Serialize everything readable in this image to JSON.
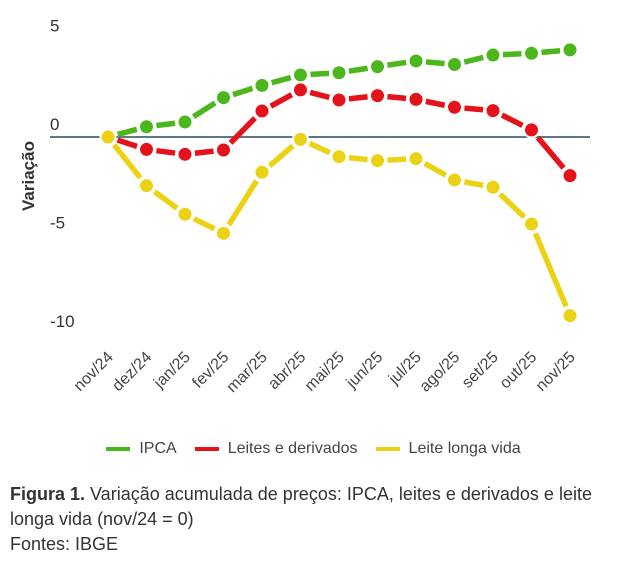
{
  "chart_data": {
    "type": "line",
    "title": "",
    "xlabel": "",
    "ylabel": "Variação",
    "ylim": [
      -10,
      5
    ],
    "yticks": [
      5,
      0,
      -5,
      -10
    ],
    "grid": false,
    "baseline": 0,
    "legend_position": "bottom",
    "categories": [
      "nov/24",
      "dez/24",
      "jan/25",
      "fev/25",
      "mar/25",
      "abr/25",
      "mai/25",
      "jun/25",
      "jul/25",
      "ago/25",
      "set/25",
      "out/25",
      "nov/25"
    ],
    "series": [
      {
        "name": "IPCA",
        "color": "#4cb71c",
        "values": [
          0,
          0.52,
          0.76,
          2.0,
          2.62,
          3.15,
          3.26,
          3.57,
          3.86,
          3.68,
          4.16,
          4.25,
          4.42
        ]
      },
      {
        "name": "Leites e derivados",
        "color": "#e3121b",
        "values": [
          0,
          -0.63,
          -0.88,
          -0.66,
          1.32,
          2.39,
          1.88,
          2.1,
          1.91,
          1.51,
          1.34,
          0.36,
          -1.96
        ]
      },
      {
        "name": "Leite longa vida",
        "color": "#ecd214",
        "values": [
          0,
          -2.47,
          -3.92,
          -4.89,
          -1.79,
          -0.12,
          -1.0,
          -1.2,
          -1.1,
          -2.18,
          -2.55,
          -4.42,
          -9.07
        ]
      }
    ]
  },
  "caption": {
    "figure_label": "Figura 1.",
    "text": " Variação acumulada de preços: IPCA, leites e derivados e leite longa vida (nov/24 = 0)",
    "source": "Fontes: IBGE"
  }
}
